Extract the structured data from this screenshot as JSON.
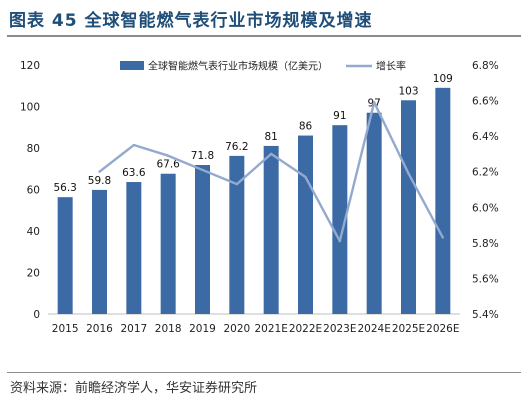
{
  "title": "图表 45 全球智能燃气表行业市场规模及增速",
  "source": "资料来源：前瞻经济学人，华安证券研究所",
  "chart_data": {
    "type": "bar",
    "categories": [
      "2015",
      "2016",
      "2017",
      "2018",
      "2019",
      "2020",
      "2021E",
      "2022E",
      "2023E",
      "2024E",
      "2025E",
      "2026E"
    ],
    "series": [
      {
        "name": "全球智能燃气表行业市场规模（亿美元）",
        "type": "bar",
        "axis": "left",
        "values": [
          56.3,
          59.8,
          63.6,
          67.6,
          71.8,
          76.2,
          81,
          86,
          91,
          97,
          103,
          109
        ],
        "labels": [
          "56.3",
          "59.8",
          "63.6",
          "67.6",
          "71.8",
          "76.2",
          "81",
          "86",
          "91",
          "97",
          "103",
          "109"
        ],
        "color": "#3c6aa5"
      },
      {
        "name": "增长率",
        "type": "line",
        "axis": "right",
        "values": [
          null,
          6.2,
          6.35,
          6.29,
          6.21,
          6.13,
          6.3,
          6.17,
          5.81,
          6.59,
          6.19,
          5.83
        ],
        "color": "#93aacf"
      }
    ],
    "left_axis": {
      "ylim": [
        0,
        120
      ],
      "ticks": [
        "0",
        "20",
        "40",
        "60",
        "80",
        "100",
        "120"
      ]
    },
    "right_axis": {
      "ylim": [
        5.4,
        6.8
      ],
      "ticks": [
        "5.4%",
        "5.6%",
        "5.8%",
        "6.0%",
        "6.2%",
        "6.4%",
        "6.6%",
        "6.8%"
      ]
    },
    "legend_position": "top",
    "grid": false
  }
}
